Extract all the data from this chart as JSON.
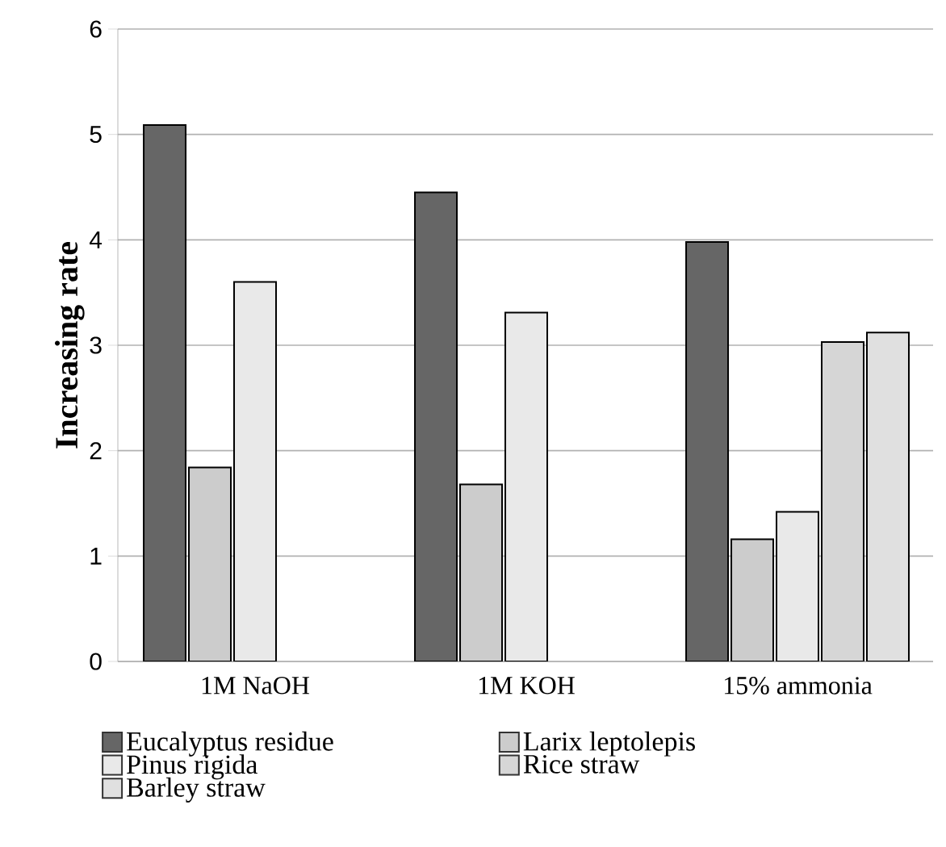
{
  "chart_data": {
    "type": "bar",
    "ylabel": "Increasing rate",
    "categories": [
      "1M NaOH",
      "1M KOH",
      "15% ammonia"
    ],
    "series": [
      {
        "name": "Eucalyptus residue",
        "color": "#666666",
        "values": [
          5.09,
          4.45,
          3.98
        ]
      },
      {
        "name": "Larix leptolepis",
        "color": "#cccccc",
        "values": [
          1.84,
          1.68,
          1.16
        ]
      },
      {
        "name": "Pinus rigida",
        "color": "#e9e9e9",
        "values": [
          3.6,
          3.31,
          1.42
        ]
      },
      {
        "name": "Rice straw",
        "color": "#d6d6d6",
        "values": [
          null,
          null,
          3.03
        ]
      },
      {
        "name": "Barley straw",
        "color": "#e0e0e0",
        "values": [
          null,
          null,
          3.12
        ]
      }
    ],
    "ylim": [
      0,
      6
    ],
    "yticks": [
      0,
      1,
      2,
      3,
      4,
      5,
      6
    ],
    "grid": "y",
    "legend": "bottom"
  }
}
